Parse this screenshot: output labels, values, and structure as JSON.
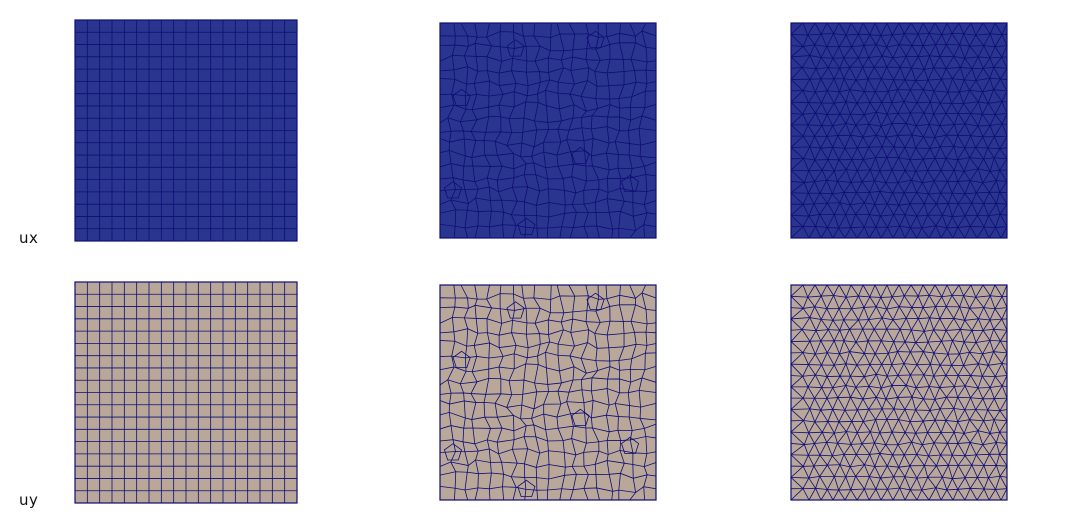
{
  "rows": [
    {
      "label": "ux",
      "fill_color": "#2a3590"
    },
    {
      "label": "uy",
      "fill_color": "#b9a799"
    }
  ],
  "line_color": "#0e0e74",
  "meshes": [
    {
      "type": "structured-quad",
      "divisions": 18
    },
    {
      "type": "unstructured-quad",
      "divisions": 18
    },
    {
      "type": "triangular",
      "divisions": 18
    }
  ]
}
